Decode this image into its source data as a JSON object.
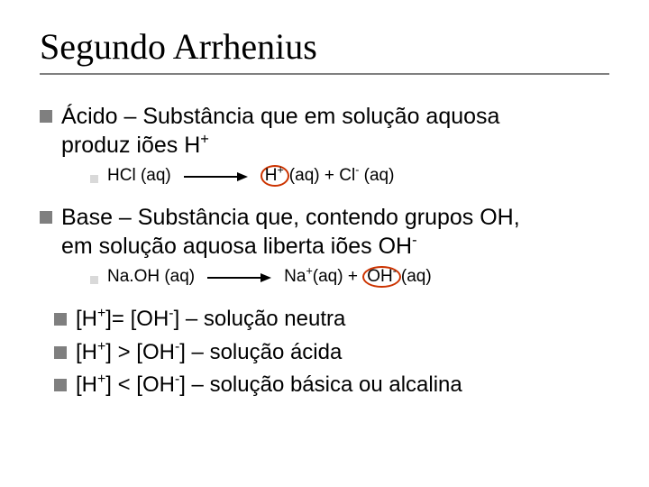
{
  "title": "Segundo Arrhenius",
  "acid": {
    "line1": "Ácido – Substância que em solução aquosa",
    "line2_a": "produz iões H",
    "line2_sup": "+",
    "reaction": {
      "lhs": "HCl (aq)",
      "rhs_ion1": "H",
      "rhs_ion1_sup": "+",
      "rhs_mid": "(aq) + Cl",
      "rhs_ion2_sup": "-",
      "rhs_tail": " (aq)"
    }
  },
  "base": {
    "line1": "Base – Substância que, contendo grupos OH,",
    "line2_a": "em solução aquosa liberta iões OH",
    "line2_sup": "-",
    "reaction": {
      "lhs": "Na.OH (aq)",
      "rhs_a": "Na",
      "rhs_a_sup": "+",
      "rhs_mid": "(aq) + ",
      "rhs_ion": "OH",
      "rhs_ion_sup": "-",
      "rhs_tail": "(aq)"
    }
  },
  "relations": {
    "neutral_a": "[H",
    "neutral_a_sup": "+",
    "neutral_b": "]= [OH",
    "neutral_b_sup": "-",
    "neutral_c": "] – solução neutra",
    "acid_a": "[H",
    "acid_a_sup": "+",
    "acid_b": "] > [OH",
    "acid_b_sup": "-",
    "acid_c": "] – solução ácida",
    "basic_a": "[H",
    "basic_a_sup": "+",
    "basic_b": "] < [OH",
    "basic_b_sup": "-",
    "basic_c": "] – solução básica ou alcalina"
  },
  "colors": {
    "bullet_large": "#7f7f7f",
    "bullet_small": "#d9d9d9",
    "circle": "#cc3300",
    "underline": "#808080"
  }
}
